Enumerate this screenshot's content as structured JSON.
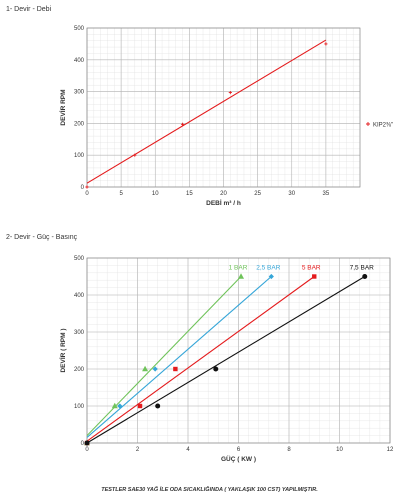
{
  "titles": {
    "section1": "1- Devir - Debi",
    "section2": "2- Devir - Güç - Basınç"
  },
  "footer": "TESTLER SAE30 YAĞ İLE ODA SICAKLIĞINDA ( YAKLAŞIK 100 CST) YAPILMIŞTIR.",
  "chart_data": [
    {
      "type": "line",
      "title": "Devir - Debi",
      "xlabel": "DEBİ m³ / h",
      "ylabel": "DEVİR RPM",
      "xlim": [
        0,
        40
      ],
      "ylim": [
        0,
        500
      ],
      "xticks": [
        0,
        5,
        10,
        15,
        20,
        25,
        30,
        35
      ],
      "yticks": [
        0,
        100,
        200,
        300,
        400,
        500
      ],
      "grid": true,
      "legend_position": "right",
      "series": [
        {
          "name": "KIP2⅜\"",
          "color": "#e41a1c",
          "points": [
            [
              0,
              0
            ],
            [
              7,
              100
            ],
            [
              14,
              197
            ],
            [
              21,
              297
            ],
            [
              35,
              450
            ]
          ],
          "fit": [
            [
              0,
              12
            ],
            [
              35,
              462
            ]
          ]
        }
      ]
    },
    {
      "type": "line",
      "title": "Devir - Güç - Basınç",
      "xlabel": "GÜÇ ( KW )",
      "ylabel": "DEVİR ( RPM )",
      "xlim": [
        0,
        12
      ],
      "ylim": [
        0,
        500
      ],
      "xticks": [
        0,
        2,
        4,
        6,
        8,
        10,
        12
      ],
      "yticks": [
        0,
        100,
        200,
        300,
        400,
        500
      ],
      "grid": true,
      "series": [
        {
          "name": "1 BAR",
          "color": "#6fc35a",
          "marker": "triangle",
          "points": [
            [
              0,
              0
            ],
            [
              1.1,
              100
            ],
            [
              2.3,
              200
            ],
            [
              6.1,
              450
            ]
          ],
          "fit": [
            [
              0,
              20
            ],
            [
              6.1,
              450
            ]
          ]
        },
        {
          "name": "2,5 BAR",
          "color": "#36a6d8",
          "marker": "diamond",
          "points": [
            [
              0,
              0
            ],
            [
              1.3,
              100
            ],
            [
              2.7,
              200
            ],
            [
              7.3,
              450
            ]
          ],
          "fit": [
            [
              0,
              15
            ],
            [
              7.3,
              450
            ]
          ]
        },
        {
          "name": "5 BAR",
          "color": "#e41a1c",
          "marker": "square",
          "points": [
            [
              0,
              0
            ],
            [
              2.1,
              100
            ],
            [
              3.5,
              200
            ],
            [
              9.0,
              450
            ]
          ],
          "fit": [
            [
              0,
              5
            ],
            [
              9.0,
              450
            ]
          ]
        },
        {
          "name": "7,5 BAR",
          "color": "#111111",
          "marker": "circle",
          "points": [
            [
              0,
              0
            ],
            [
              2.8,
              100
            ],
            [
              5.1,
              200
            ],
            [
              11.0,
              450
            ]
          ],
          "fit": [
            [
              0,
              0
            ],
            [
              11.0,
              450
            ]
          ]
        }
      ]
    }
  ]
}
